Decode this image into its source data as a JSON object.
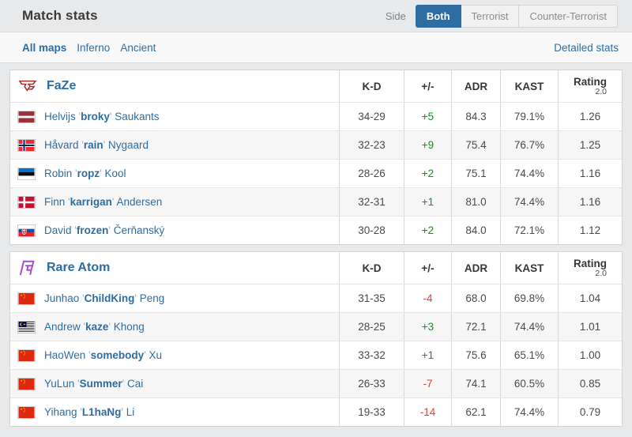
{
  "page": {
    "title": "Match stats",
    "side_label": "Side",
    "side_tabs": [
      {
        "label": "Both",
        "active": true
      },
      {
        "label": "Terrorist",
        "active": false
      },
      {
        "label": "Counter-Terrorist",
        "active": false
      }
    ],
    "maps_nav": [
      {
        "label": "All maps",
        "active": true
      },
      {
        "label": "Inferno",
        "active": false
      },
      {
        "label": "Ancient",
        "active": false
      }
    ],
    "detailed_stats_link": "Detailed stats"
  },
  "columns": {
    "kd": "K-D",
    "diff": "+/-",
    "adr": "ADR",
    "kast": "KAST",
    "rating": "Rating",
    "rating_sub": "2.0"
  },
  "colors": {
    "accent_blue": "#2d6da3",
    "positive_green": "#00a100",
    "negative_red": "#dc4242",
    "faze_red": "#a6272e",
    "rareatom_purple": "#a44fd0",
    "page_bg": "#e8e9ea"
  },
  "teams": [
    {
      "name": "FaZe",
      "logo": "faze",
      "players": [
        {
          "country": "Latvia",
          "flag": "lv",
          "first": "Helvijs",
          "nick": "broky",
          "last": "Saukants",
          "kd": "34-29",
          "diff": "+5",
          "adr": "84.3",
          "kast": "79.1%",
          "rating": "1.26"
        },
        {
          "country": "Norway",
          "flag": "no",
          "first": "Håvard",
          "nick": "rain",
          "last": "Nygaard",
          "kd": "32-23",
          "diff": "+9",
          "adr": "75.4",
          "kast": "76.7%",
          "rating": "1.25"
        },
        {
          "country": "Estonia",
          "flag": "ee",
          "first": "Robin",
          "nick": "ropz",
          "last": "Kool",
          "kd": "28-26",
          "diff": "+2",
          "adr": "75.1",
          "kast": "74.4%",
          "rating": "1.16"
        },
        {
          "country": "Denmark",
          "flag": "dk",
          "first": "Finn",
          "nick": "karrigan",
          "last": "Andersen",
          "kd": "32-31",
          "diff": "+1",
          "adr": "81.0",
          "kast": "74.4%",
          "rating": "1.16"
        },
        {
          "country": "Slovakia",
          "flag": "sk",
          "first": "David",
          "nick": "frozen",
          "last": "Čerňanský",
          "kd": "30-28",
          "diff": "+2",
          "adr": "84.0",
          "kast": "72.1%",
          "rating": "1.12"
        }
      ]
    },
    {
      "name": "Rare Atom",
      "logo": "rareatom",
      "players": [
        {
          "country": "China",
          "flag": "cn",
          "first": "Junhao",
          "nick": "ChildKing",
          "last": "Peng",
          "kd": "31-35",
          "diff": "-4",
          "adr": "68.0",
          "kast": "69.8%",
          "rating": "1.04"
        },
        {
          "country": "Malaysia",
          "flag": "my",
          "first": "Andrew",
          "nick": "kaze",
          "last": "Khong",
          "kd": "28-25",
          "diff": "+3",
          "adr": "72.1",
          "kast": "74.4%",
          "rating": "1.01"
        },
        {
          "country": "China",
          "flag": "cn",
          "first": "HaoWen",
          "nick": "somebody",
          "last": "Xu",
          "kd": "33-32",
          "diff": "+1",
          "adr": "75.6",
          "kast": "65.1%",
          "rating": "1.00"
        },
        {
          "country": "China",
          "flag": "cn",
          "first": "YuLun",
          "nick": "Summer",
          "last": "Cai",
          "kd": "26-33",
          "diff": "-7",
          "adr": "74.1",
          "kast": "60.5%",
          "rating": "0.85"
        },
        {
          "country": "China",
          "flag": "cn",
          "first": "Yihang",
          "nick": "L1haNg",
          "last": "Li",
          "kd": "19-33",
          "diff": "-14",
          "adr": "62.1",
          "kast": "74.4%",
          "rating": "0.79"
        }
      ]
    }
  ]
}
